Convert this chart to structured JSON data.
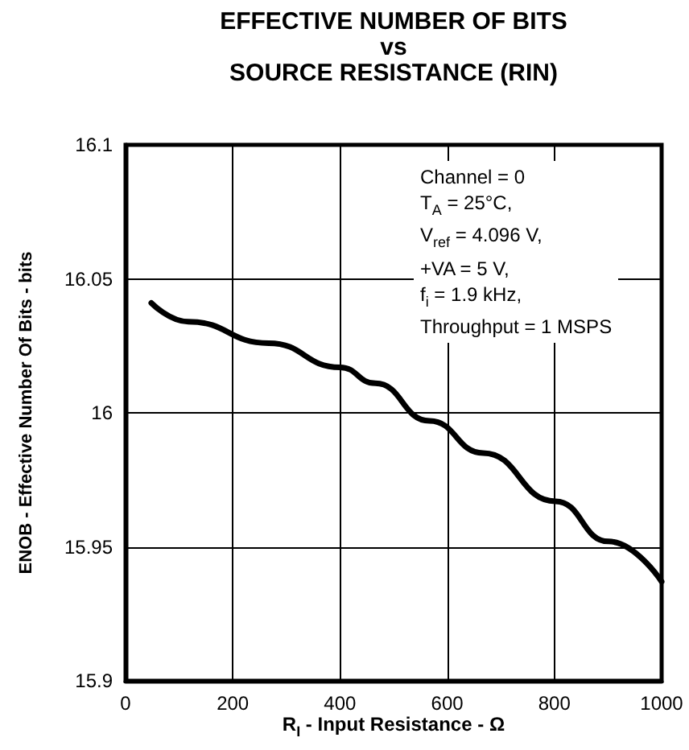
{
  "chart_data": {
    "type": "line",
    "title": "EFFECTIVE NUMBER OF BITS\nvs\nSOURCE RESISTANCE (RIN)",
    "xlabel": "R$_{I}$ - Input Resistance - Ω",
    "ylabel": "ENOB - Effective Number Of Bits - bits",
    "annotations": [
      "Channel = 0",
      "T$_{A}$ = 25°C,",
      "V$_{ref}$ = 4.096 V,",
      "+VA = 5 V,",
      "f$_{i}$ = 1.9 kHz,",
      "Throughput = 1 MSPS"
    ],
    "x": [
      48,
      117,
      267,
      400,
      466,
      567,
      667,
      802,
      901,
      1000
    ],
    "series": [
      {
        "color": "#000000",
        "values": [
          16.041,
          16.034,
          16.026,
          16.017,
          16.011,
          15.997,
          15.985,
          15.967,
          15.952,
          15.937
        ]
      }
    ],
    "xlim": [
      0,
      1000
    ],
    "xticks": [
      0,
      200,
      400,
      600,
      800,
      1000
    ],
    "ylim": [
      15.9,
      16.1
    ],
    "yticks": [
      15.9,
      15.95,
      16,
      16.05,
      16.1
    ],
    "grid": true,
    "marker": "none",
    "line_style": "solid"
  }
}
